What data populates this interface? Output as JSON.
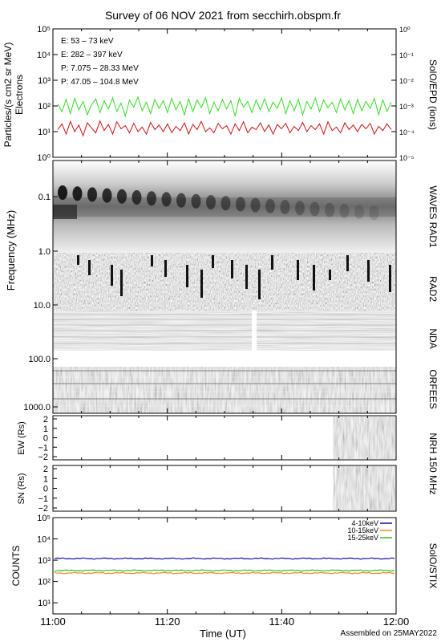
{
  "title": "Survey of 06 NOV 2021 from secchirh.obspm.fr",
  "footer": "Assembled on 25MAY2022",
  "colors": {
    "green": "#33dd22",
    "red": "#cc1111",
    "black": "#000000",
    "blue": "#1111aa",
    "orange": "#ee8822",
    "stix_green": "#33bb22"
  },
  "chart_data": [
    {
      "type": "line",
      "id": "epd",
      "ylabel": "Particles/(s cm2 sr MeV)",
      "ylabel2": "Electrons",
      "right_label": "SolO/EPD (ions)",
      "yscale": "log",
      "ylim": [
        1,
        100000
      ],
      "y_ticks": [
        "10⁰",
        "10¹",
        "10²",
        "10³",
        "10⁴",
        "10⁵"
      ],
      "y2_ticks": [
        "10⁻⁵",
        "10⁻⁴",
        "10⁻³",
        "10⁻²",
        "10⁻¹",
        "10⁰"
      ],
      "xlim": [
        "11:00",
        "12:00"
      ],
      "legend_position": "top-left",
      "series": [
        {
          "name": "E: 53 – 73 keV",
          "color": "#33dd22",
          "values": [
            120,
            60,
            180,
            50,
            200,
            70,
            150,
            45,
            110,
            190,
            55,
            160,
            75,
            210,
            60,
            130,
            40,
            170,
            90,
            220,
            65,
            140,
            50,
            180,
            80,
            160,
            55,
            200,
            70,
            150,
            45,
            190,
            60,
            170,
            85,
            210,
            50,
            140,
            65,
            180,
            75,
            160,
            40,
            200,
            90,
            150,
            55,
            170,
            70,
            190,
            60,
            140,
            80,
            210,
            50,
            160,
            65,
            180,
            45,
            150,
            75,
            200,
            60,
            170,
            85,
            140,
            55,
            190,
            70,
            160,
            50,
            180,
            65,
            150,
            80,
            200,
            45,
            170,
            60,
            140
          ]
        },
        {
          "name": "E: 282 – 397 keV",
          "color": "#cc1111",
          "values": [
            12,
            20,
            8,
            25,
            10,
            18,
            7,
            22,
            14,
            9,
            26,
            11,
            19,
            8,
            24,
            13,
            17,
            9,
            21,
            10,
            15,
            8,
            23,
            12,
            18,
            10,
            20,
            9,
            16,
            11,
            22,
            8,
            19,
            12,
            25,
            10,
            14,
            9,
            21,
            13,
            17,
            8,
            20,
            11,
            24,
            9,
            15,
            12,
            22,
            10,
            18,
            8,
            19,
            13,
            21,
            9,
            16,
            11,
            23,
            10,
            17,
            12,
            20,
            8,
            24,
            11,
            15,
            9,
            22,
            12,
            18,
            10,
            19,
            13,
            21,
            8,
            16,
            11,
            20,
            12
          ]
        },
        {
          "name": "P: 7.075 – 28.33 MeV",
          "color": "#000000",
          "values": [
            null,
            null,
            null,
            null,
            null,
            null,
            null,
            null,
            null,
            null,
            null,
            null,
            null,
            null,
            null,
            null,
            null,
            null,
            null,
            null,
            null,
            null,
            null,
            null,
            null,
            null,
            null,
            null,
            null,
            null,
            null,
            null,
            null,
            null,
            null,
            null,
            null,
            null,
            null,
            null,
            null,
            null,
            null,
            null,
            null,
            null,
            null,
            null,
            null,
            null,
            null,
            null,
            null,
            null,
            null,
            null,
            null,
            null,
            null,
            null,
            null,
            null,
            null,
            null,
            null,
            null,
            null,
            null,
            null,
            null,
            null,
            null,
            null,
            null,
            null,
            null,
            null,
            null,
            null,
            null
          ]
        },
        {
          "name": "P: 47.05 – 104.8 MeV",
          "color": "#1111aa",
          "values": [
            null,
            null,
            null,
            null,
            null,
            null,
            null,
            null,
            null,
            null,
            null,
            null,
            null,
            null,
            null,
            null,
            null,
            null,
            null,
            null,
            null,
            null,
            null,
            null,
            null,
            null,
            null,
            null,
            null,
            null,
            null,
            null,
            null,
            null,
            null,
            null,
            null,
            null,
            null,
            null,
            null,
            null,
            null,
            null,
            null,
            null,
            null,
            null,
            null,
            null,
            null,
            null,
            null,
            null,
            null,
            null,
            null,
            null,
            null,
            null,
            null,
            null,
            null,
            null,
            null,
            null,
            null,
            null,
            null,
            null,
            null,
            null,
            null,
            null,
            null,
            null,
            null,
            null,
            null,
            null
          ]
        }
      ]
    },
    {
      "type": "heatmap",
      "id": "radio",
      "ylabel": "Frequency (MHz)",
      "yscale": "log",
      "ylim": [
        1000,
        0.02
      ],
      "y_ticks": [
        "0.1",
        "1.0",
        "10.0",
        "100.0",
        "1000.0"
      ],
      "bands": [
        "WAVES RAD1",
        "RAD2",
        "NDA",
        "ORFEES"
      ]
    },
    {
      "type": "heatmap",
      "id": "nrh_ew",
      "ylabel": "EW (Rs)",
      "ylim": [
        -2,
        2
      ],
      "y_ticks": [
        "2",
        "1",
        "0",
        "−1",
        "−2"
      ],
      "data_start": "11:49",
      "right_label": "NRH 150 MHz"
    },
    {
      "type": "heatmap",
      "id": "nrh_sn",
      "ylabel": "SN (Rs)",
      "ylim": [
        -2,
        2
      ],
      "y_ticks": [
        "2",
        "1",
        "0",
        "−1",
        "−2"
      ],
      "data_start": "11:49"
    },
    {
      "type": "line",
      "id": "stix",
      "ylabel": "COUNTS",
      "right_label": "SolO/STIX",
      "yscale": "log",
      "ylim": [
        1,
        100000
      ],
      "y_ticks": [
        "10¹",
        "10²",
        "10³",
        "10⁴",
        "10⁵"
      ],
      "xlabel": "Time (UT)",
      "x_ticks": [
        "11:00",
        "11:20",
        "11:40",
        "12:00"
      ],
      "xlim": [
        "11:00",
        "12:00"
      ],
      "legend_position": "top-right",
      "series": [
        {
          "name": "4-10keV",
          "color": "#1111aa",
          "value": 1200
        },
        {
          "name": "10-15keV",
          "color": "#ee8822",
          "value": 250
        },
        {
          "name": "15-25keV",
          "color": "#33bb22",
          "value": 330
        }
      ]
    }
  ]
}
